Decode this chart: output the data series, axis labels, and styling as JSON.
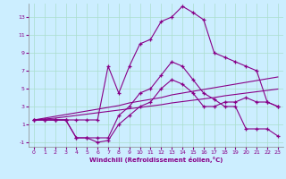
{
  "xlabel": "Windchill (Refroidissement éolien,°C)",
  "background_color": "#cceeff",
  "grid_color": "#aaddcc",
  "line_color": "#880088",
  "xlim": [
    -0.5,
    23.5
  ],
  "ylim": [
    -1.5,
    14.5
  ],
  "yticks": [
    -1,
    1,
    3,
    5,
    7,
    9,
    11,
    13
  ],
  "xticks": [
    0,
    1,
    2,
    3,
    4,
    5,
    6,
    7,
    8,
    9,
    10,
    11,
    12,
    13,
    14,
    15,
    16,
    17,
    18,
    19,
    20,
    21,
    22,
    23
  ],
  "hours": [
    0,
    1,
    2,
    3,
    4,
    5,
    6,
    7,
    8,
    9,
    10,
    11,
    12,
    13,
    14,
    15,
    16,
    17,
    18,
    19,
    20,
    21,
    22,
    23
  ],
  "curve_top": [
    1.5,
    1.5,
    1.5,
    1.5,
    1.5,
    1.5,
    1.5,
    7.5,
    4.5,
    7.5,
    10.0,
    10.5,
    12.5,
    13.0,
    14.2,
    13.5,
    12.7,
    9.0,
    8.5,
    8.0,
    7.5,
    7.0,
    3.5,
    3.0
  ],
  "curve_mid": [
    1.5,
    1.5,
    1.5,
    1.5,
    -0.5,
    -0.5,
    -0.5,
    -0.5,
    2.0,
    3.0,
    4.5,
    5.0,
    6.5,
    8.0,
    7.5,
    6.0,
    4.5,
    3.8,
    3.0,
    3.0,
    0.5,
    0.5,
    0.5,
    -0.3
  ],
  "curve_low": [
    1.5,
    1.5,
    1.5,
    1.5,
    -0.5,
    -0.5,
    -1.0,
    -0.8,
    1.0,
    2.0,
    3.0,
    3.5,
    5.0,
    6.0,
    5.5,
    4.5,
    3.0,
    3.0,
    3.5,
    3.5,
    4.0,
    3.5,
    3.5,
    3.0
  ],
  "diag1": [
    1.5,
    1.7,
    1.9,
    2.1,
    2.3,
    2.5,
    2.7,
    2.9,
    3.1,
    3.4,
    3.6,
    3.8,
    4.0,
    4.3,
    4.5,
    4.7,
    4.9,
    5.1,
    5.3,
    5.5,
    5.7,
    5.9,
    6.1,
    6.3
  ],
  "diag2": [
    1.5,
    1.6,
    1.7,
    1.85,
    2.0,
    2.15,
    2.3,
    2.45,
    2.6,
    2.75,
    2.9,
    3.05,
    3.2,
    3.4,
    3.55,
    3.7,
    3.85,
    4.0,
    4.2,
    4.35,
    4.5,
    4.65,
    4.8,
    4.95
  ]
}
